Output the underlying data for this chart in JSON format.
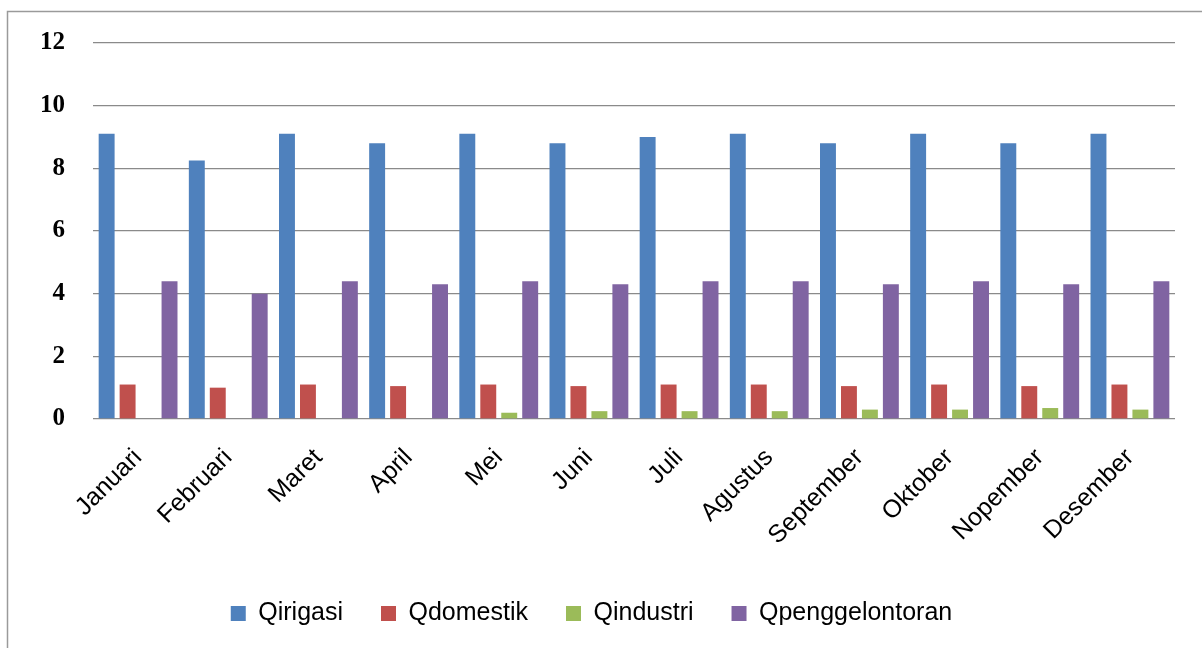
{
  "chart_data": {
    "type": "bar",
    "categories": [
      "Januari",
      "Februari",
      "Maret",
      "April",
      "Mei",
      "Juni",
      "Juli",
      "Agustus",
      "September",
      "Oktober",
      "Nopember",
      "Desember"
    ],
    "series": [
      {
        "name": "Qirigasi",
        "color": "#4f81bd",
        "values": [
          9.1,
          8.25,
          9.1,
          8.8,
          9.1,
          8.8,
          9.0,
          9.1,
          8.8,
          9.1,
          8.8,
          9.1
        ]
      },
      {
        "name": "Qdomestik",
        "color": "#c0504d",
        "values": [
          1.1,
          1.0,
          1.1,
          1.05,
          1.1,
          1.05,
          1.1,
          1.1,
          1.05,
          1.1,
          1.05,
          1.1
        ]
      },
      {
        "name": "Qindustri",
        "color": "#9bbb59",
        "values": [
          0,
          0,
          0,
          0,
          0.2,
          0.25,
          0.25,
          0.25,
          0.3,
          0.3,
          0.35,
          0.3
        ]
      },
      {
        "name": "Qpenggelontoran",
        "color": "#8064a2",
        "values": [
          4.4,
          4.0,
          4.4,
          4.3,
          4.4,
          4.3,
          4.4,
          4.4,
          4.3,
          4.4,
          4.3,
          4.4
        ]
      }
    ],
    "ylim": [
      0,
      12
    ],
    "yticks": [
      0,
      2,
      4,
      6,
      8,
      10,
      12
    ],
    "grid": "y",
    "legend": "bottom"
  }
}
